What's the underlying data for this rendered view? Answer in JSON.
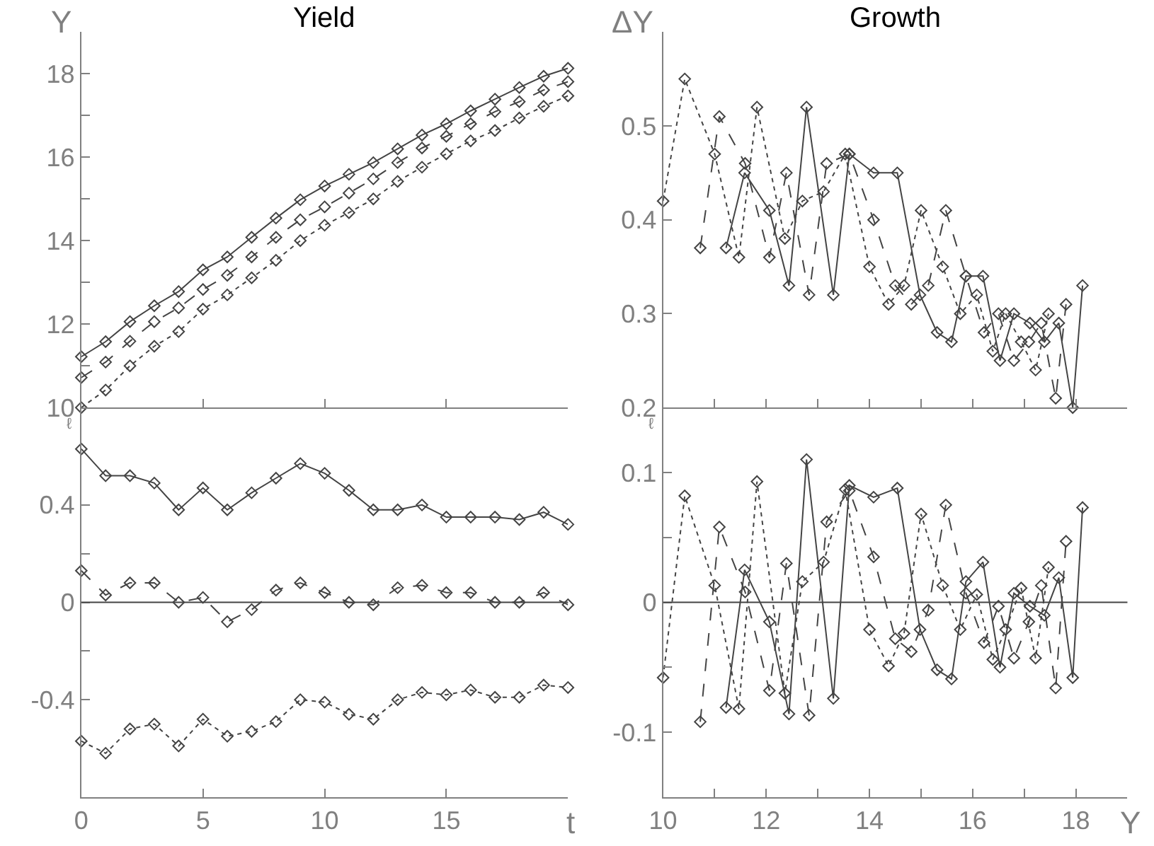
{
  "chart_data": [
    {
      "type": "line",
      "title": "Yield",
      "ylabel": "Y",
      "tick_labels": "y",
      "marker": "diamond",
      "xlim": [
        0,
        20
      ],
      "xticks": [
        0,
        5,
        10,
        15
      ],
      "ylim": [
        10,
        19
      ],
      "yticks": [
        10,
        {
          "value": 11,
          "label": null
        },
        12,
        {
          "value": 13,
          "label": null
        },
        14,
        {
          "value": 15,
          "label": null
        },
        16,
        {
          "value": 17,
          "label": null
        },
        18
      ],
      "x": [
        0,
        1,
        2,
        3,
        4,
        5,
        6,
        7,
        8,
        9,
        10,
        11,
        12,
        13,
        14,
        15,
        16,
        17,
        18,
        19,
        20
      ],
      "series": [
        {
          "color": "#444444",
          "line_style": "solid",
          "values": [
            11.22,
            11.58,
            12.06,
            12.44,
            12.78,
            13.3,
            13.61,
            14.08,
            14.54,
            14.98,
            15.31,
            15.59,
            15.87,
            16.2,
            16.53,
            16.8,
            17.11,
            17.39,
            17.67,
            17.94,
            18.13
          ]
        },
        {
          "color": "#444444",
          "line_style": "dashed",
          "values": [
            10.72,
            11.09,
            11.59,
            12.06,
            12.39,
            12.83,
            13.17,
            13.61,
            14.08,
            14.5,
            14.81,
            15.14,
            15.48,
            15.87,
            16.22,
            16.5,
            16.8,
            17.09,
            17.33,
            17.61,
            17.81
          ]
        },
        {
          "color": "#444444",
          "line_style": "dotted",
          "values": [
            10.0,
            10.42,
            11.0,
            11.47,
            11.82,
            12.36,
            12.7,
            13.11,
            13.53,
            14.0,
            14.37,
            14.67,
            15.0,
            15.42,
            15.76,
            16.08,
            16.39,
            16.64,
            16.94,
            17.22,
            17.47
          ]
        }
      ]
    },
    {
      "type": "line",
      "xlabel": "t",
      "ylabel": "ℓ",
      "marker": "diamond",
      "xlim": [
        0,
        20
      ],
      "xticks": [
        0,
        5,
        10,
        15
      ],
      "ylim": [
        -0.8,
        0.8
      ],
      "yticks": [
        -0.4,
        {
          "value": -0.2,
          "label": null
        },
        0,
        {
          "value": 0.2,
          "label": null
        },
        0.4
      ],
      "ref_lines": [
        {
          "axis": "y",
          "value": 0,
          "color": "#444444"
        }
      ],
      "x": [
        0,
        1,
        2,
        3,
        4,
        5,
        6,
        7,
        8,
        9,
        10,
        11,
        12,
        13,
        14,
        15,
        16,
        17,
        18,
        19,
        20
      ],
      "series": [
        {
          "color": "#444444",
          "line_style": "solid",
          "values": [
            0.63,
            0.52,
            0.52,
            0.49,
            0.38,
            0.47,
            0.38,
            0.45,
            0.51,
            0.57,
            0.53,
            0.46,
            0.38,
            0.38,
            0.4,
            0.35,
            0.35,
            0.35,
            0.34,
            0.37,
            0.32
          ]
        },
        {
          "color": "#444444",
          "line_style": "dashed",
          "values": [
            0.13,
            0.03,
            0.08,
            0.08,
            0.0,
            0.02,
            -0.08,
            -0.03,
            0.05,
            0.08,
            0.04,
            0.0,
            -0.01,
            0.06,
            0.07,
            0.04,
            0.04,
            0.0,
            0.0,
            0.04,
            -0.01
          ]
        },
        {
          "color": "#444444",
          "line_style": "dotted",
          "values": [
            -0.57,
            -0.62,
            -0.52,
            -0.5,
            -0.59,
            -0.48,
            -0.55,
            -0.53,
            -0.49,
            -0.4,
            -0.41,
            -0.46,
            -0.48,
            -0.4,
            -0.37,
            -0.38,
            -0.36,
            -0.39,
            -0.39,
            -0.34,
            -0.35
          ]
        }
      ]
    },
    {
      "type": "line",
      "title": "Growth",
      "ylabel": "ΔY",
      "tick_labels": "y",
      "marker": "diamond",
      "xlim": [
        10,
        19
      ],
      "xticks": [
        10,
        11,
        12,
        13,
        14,
        15,
        16,
        17,
        18
      ],
      "ylim": [
        0.2,
        0.6
      ],
      "yticks": [
        0.2,
        0.3,
        0.4,
        0.5
      ],
      "series": [
        {
          "color": "#444444",
          "line_style": "solid",
          "x": [
            11.22,
            11.58,
            12.06,
            12.44,
            12.78,
            13.3,
            13.61,
            14.08,
            14.54,
            14.98,
            15.31,
            15.59,
            15.87,
            16.2,
            16.53,
            16.8,
            17.11,
            17.39,
            17.67,
            17.94,
            18.13
          ],
          "values": [
            0.37,
            0.45,
            0.41,
            0.33,
            0.52,
            0.32,
            0.47,
            0.45,
            0.45,
            0.32,
            0.28,
            0.27,
            0.34,
            0.34,
            0.25,
            0.3,
            0.29,
            0.27,
            0.29,
            0.2,
            0.33
          ]
        },
        {
          "color": "#444444",
          "line_style": "dashed",
          "x": [
            10.72,
            11.09,
            11.59,
            12.06,
            12.39,
            12.83,
            13.17,
            13.61,
            14.08,
            14.5,
            14.81,
            15.14,
            15.48,
            15.87,
            16.22,
            16.5,
            16.8,
            17.09,
            17.33,
            17.61,
            17.81
          ],
          "values": [
            0.37,
            0.51,
            0.46,
            0.36,
            0.45,
            0.32,
            0.46,
            0.47,
            0.4,
            0.33,
            0.31,
            0.33,
            0.41,
            0.34,
            0.28,
            0.3,
            0.25,
            0.27,
            0.29,
            0.21,
            0.31
          ]
        },
        {
          "color": "#444444",
          "line_style": "dotted",
          "x": [
            10.0,
            10.42,
            11.0,
            11.47,
            11.82,
            12.36,
            12.7,
            13.11,
            13.53,
            14.0,
            14.37,
            14.67,
            15.0,
            15.42,
            15.76,
            16.08,
            16.39,
            16.64,
            16.94,
            17.22,
            17.47
          ],
          "values": [
            0.42,
            0.55,
            0.47,
            0.36,
            0.52,
            0.38,
            0.42,
            0.43,
            0.47,
            0.35,
            0.31,
            0.33,
            0.41,
            0.35,
            0.3,
            0.32,
            0.26,
            0.3,
            0.27,
            0.24,
            0.3
          ]
        }
      ]
    },
    {
      "type": "line",
      "xlabel": "Y",
      "ylabel": "ℓ",
      "marker": "diamond",
      "xlim": [
        10,
        19
      ],
      "xticks": [
        10,
        {
          "value": 11,
          "label": null
        },
        12,
        {
          "value": 13,
          "label": null
        },
        14,
        {
          "value": 15,
          "label": null
        },
        16,
        {
          "value": 17,
          "label": null
        },
        18
      ],
      "ylim": [
        -0.15,
        0.15
      ],
      "yticks": [
        -0.1,
        {
          "value": -0.05,
          "label": null
        },
        0,
        {
          "value": 0.05,
          "label": null
        },
        0.1
      ],
      "ref_lines": [
        {
          "axis": "y",
          "value": 0,
          "color": "#444444"
        }
      ],
      "series": [
        {
          "color": "#444444",
          "line_style": "solid",
          "x": [
            11.22,
            11.58,
            12.06,
            12.44,
            12.78,
            13.3,
            13.61,
            14.08,
            14.54,
            14.98,
            15.31,
            15.59,
            15.87,
            16.2,
            16.53,
            16.8,
            17.11,
            17.39,
            17.67,
            17.94,
            18.13
          ],
          "values": [
            -0.081,
            0.025,
            -0.015,
            -0.086,
            0.11,
            -0.074,
            0.09,
            0.081,
            0.088,
            -0.021,
            -0.052,
            -0.059,
            0.016,
            0.031,
            -0.05,
            0.007,
            -0.003,
            -0.01,
            0.019,
            -0.058,
            0.073
          ]
        },
        {
          "color": "#444444",
          "line_style": "dashed",
          "x": [
            10.72,
            11.09,
            11.59,
            12.06,
            12.39,
            12.83,
            13.17,
            13.61,
            14.08,
            14.5,
            14.81,
            15.14,
            15.48,
            15.87,
            16.22,
            16.5,
            16.8,
            17.09,
            17.33,
            17.61,
            17.81
          ],
          "values": [
            -0.092,
            0.058,
            0.008,
            -0.068,
            0.03,
            -0.087,
            0.062,
            0.086,
            0.035,
            -0.028,
            -0.038,
            -0.006,
            0.075,
            0.007,
            -0.031,
            -0.003,
            -0.043,
            -0.015,
            0.013,
            -0.066,
            0.047
          ]
        },
        {
          "color": "#444444",
          "line_style": "dotted",
          "x": [
            10.0,
            10.42,
            11.0,
            11.47,
            11.82,
            12.36,
            12.7,
            13.11,
            13.53,
            14.0,
            14.37,
            14.67,
            15.0,
            15.42,
            15.76,
            16.08,
            16.39,
            16.64,
            16.94,
            17.22,
            17.47
          ],
          "values": [
            -0.058,
            0.082,
            0.013,
            -0.082,
            0.093,
            -0.07,
            0.016,
            0.031,
            0.087,
            -0.021,
            -0.049,
            -0.024,
            0.068,
            0.013,
            -0.021,
            0.006,
            -0.044,
            -0.021,
            0.011,
            -0.043,
            0.027
          ]
        }
      ]
    }
  ]
}
